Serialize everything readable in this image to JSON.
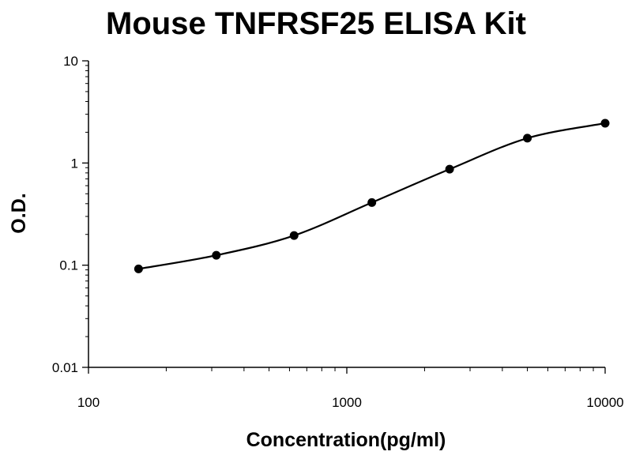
{
  "chart_data": {
    "type": "scatter",
    "title": "Mouse TNFRSF25 ELISA Kit",
    "xlabel": "Concentration(pg/ml)",
    "ylabel": "O.D.",
    "xscale": "log",
    "yscale": "log",
    "xlim": [
      100,
      10000
    ],
    "ylim": [
      0.01,
      10
    ],
    "xticks": [
      "100",
      "1000",
      "10000"
    ],
    "yticks": [
      "0.01",
      "0.1",
      "1",
      "10"
    ],
    "grid": false,
    "legend": "none",
    "series": [
      {
        "x": [
          156.25,
          312.5,
          625,
          1250,
          2500,
          5000,
          10000
        ],
        "y": [
          0.092,
          0.125,
          0.195,
          0.41,
          0.87,
          1.75,
          2.45
        ],
        "marker": "circle",
        "fit_curve": true
      }
    ],
    "colors": {
      "line": "#000000",
      "marker": "#000000"
    }
  }
}
